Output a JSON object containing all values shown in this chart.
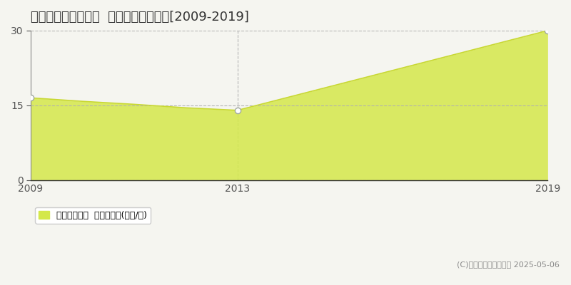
{
  "title": "愛知郡愛荘町愛知川  収益物件価格推移[2009-2019]",
  "years": [
    2009,
    2010,
    2011,
    2012,
    2013,
    2019
  ],
  "values": [
    16.5,
    15.8,
    15.2,
    14.5,
    14.0,
    30.0
  ],
  "xlim": [
    2009,
    2019
  ],
  "ylim": [
    0,
    30
  ],
  "yticks": [
    0,
    15,
    30
  ],
  "xticks": [
    2009,
    2013,
    2019
  ],
  "line_color": "#c8d832",
  "fill_color": "#d4e84a",
  "fill_alpha": 0.85,
  "marker_years": [
    2009,
    2013,
    2019
  ],
  "marker_values": [
    16.5,
    14.0,
    30.0
  ],
  "marker_color": "white",
  "marker_edge_color": "#a0a8a0",
  "grid_color": "#b0b0b0",
  "background_color": "#f5f5f0",
  "plot_bg_color": "#f5f5f0",
  "legend_label": "収益物件価格  平均坪単価(万円/坪)",
  "copyright_text": "(C)土地価格ドットコム 2025-05-06",
  "title_fontsize": 13,
  "axis_fontsize": 10,
  "legend_fontsize": 9
}
